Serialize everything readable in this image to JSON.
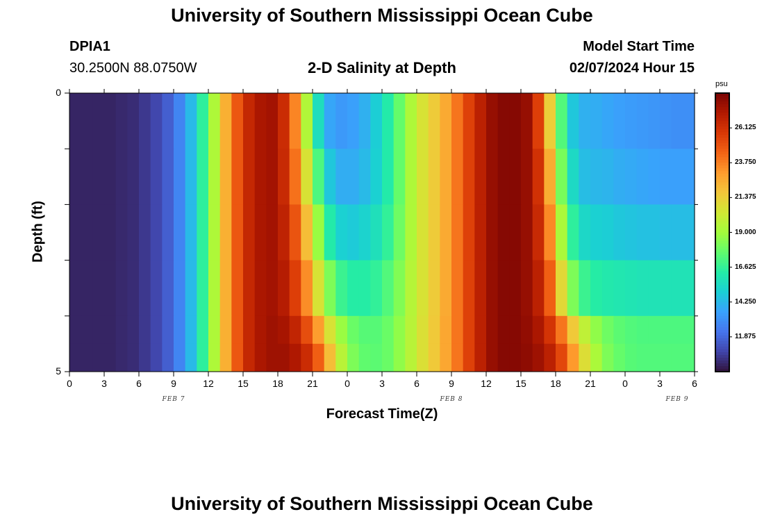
{
  "header": {
    "title": "University of Southern Mississippi Ocean Cube",
    "station_id": "DPIA1",
    "station_coords": "30.2500N  88.0750W",
    "subtitle": "2-D Salinity at Depth",
    "start_label": "Model Start Time",
    "start_value": "02/07/2024 Hour 15"
  },
  "footer": {
    "title": "University of Southern Mississippi Ocean Cube"
  },
  "axes": {
    "xlabel": "Forecast Time(Z)",
    "ylabel": "Depth (ft)",
    "x_tick_labels": [
      "0",
      "3",
      "6",
      "9",
      "12",
      "15",
      "18",
      "21",
      "0",
      "3",
      "6",
      "9",
      "12",
      "15",
      "18",
      "21",
      "0",
      "3",
      "6"
    ],
    "y_tick_labels": [
      "0",
      "5"
    ],
    "date_labels": [
      "FEB 7",
      "FEB 8",
      "FEB 9"
    ]
  },
  "colorbar": {
    "unit": "psu",
    "ticks": [
      "26.125",
      "23.750",
      "21.375",
      "19.000",
      "16.625",
      "14.250",
      "11.875"
    ],
    "min": 9.5,
    "max": 28.5,
    "colors": [
      "#30123b",
      "#4145ab",
      "#4675ed",
      "#39a2fc",
      "#1bcfd4",
      "#24eca6",
      "#61fc6c",
      "#a4fc3b",
      "#d1e834",
      "#f3c63a",
      "#fe9b2d",
      "#f36315",
      "#d93806",
      "#b11901",
      "#7a0403"
    ]
  },
  "chart_data": {
    "type": "heatmap",
    "title": "2-D Salinity at Depth",
    "xlabel": "Forecast Time(Z)",
    "ylabel": "Depth (ft)",
    "unit": "psu",
    "x_unit": "forecast hour from 02/07/2024 00Z",
    "x_range": [
      0,
      54
    ],
    "y_range": [
      0,
      5
    ],
    "depths": [
      0,
      1,
      2,
      3,
      4,
      5
    ],
    "depth_bands": [
      "0-1",
      "1-2",
      "2-3",
      "3-4",
      "4-4.5",
      "4.5-5"
    ],
    "hours": [
      0,
      1,
      2,
      3,
      4,
      5,
      6,
      7,
      8,
      9,
      10,
      11,
      12,
      13,
      14,
      15,
      16,
      17,
      18,
      19,
      20,
      21,
      22,
      23,
      24,
      25,
      26,
      27,
      28,
      29,
      30,
      31,
      32,
      33,
      34,
      35,
      36,
      37,
      38,
      39,
      40,
      41,
      42,
      43,
      44,
      45,
      46,
      47,
      48,
      49,
      50,
      51,
      52,
      53,
      54
    ],
    "salinity": [
      [
        10.0,
        10.0,
        10.0,
        10.0,
        10.1,
        10.2,
        10.5,
        10.9,
        11.6,
        12.7,
        14.3,
        16.5,
        19.3,
        22.4,
        24.8,
        26.5,
        27.3,
        27.5,
        26.3,
        23.6,
        19.4,
        15.6,
        13.7,
        13.3,
        13.5,
        14.0,
        14.9,
        16.2,
        17.7,
        19.3,
        20.6,
        21.5,
        22.6,
        24.0,
        25.5,
        26.8,
        27.8,
        28.2,
        28.2,
        27.8,
        25.6,
        21.4,
        17.3,
        14.7,
        14.0,
        13.9,
        13.7,
        13.5,
        13.4,
        13.3,
        13.2,
        13.1,
        13.0,
        13.0,
        13.0
      ],
      [
        10.0,
        10.0,
        10.0,
        10.0,
        10.1,
        10.2,
        10.5,
        10.9,
        11.6,
        12.7,
        14.3,
        16.5,
        19.3,
        22.4,
        24.8,
        26.5,
        27.3,
        27.5,
        26.4,
        24.1,
        20.6,
        17.2,
        14.7,
        13.9,
        13.9,
        14.3,
        15.0,
        16.2,
        17.7,
        19.3,
        20.6,
        21.5,
        22.6,
        24.0,
        25.5,
        26.8,
        27.8,
        28.2,
        28.2,
        27.8,
        26.1,
        22.5,
        18.1,
        15.4,
        14.4,
        14.2,
        14.1,
        13.9,
        13.8,
        13.7,
        13.6,
        13.5,
        13.5,
        13.5,
        13.5
      ],
      [
        10.0,
        10.0,
        10.0,
        10.0,
        10.1,
        10.2,
        10.5,
        10.9,
        11.6,
        12.7,
        14.3,
        16.5,
        19.3,
        22.4,
        24.8,
        26.5,
        27.3,
        27.5,
        26.7,
        24.9,
        22.0,
        18.8,
        16.2,
        15.0,
        14.8,
        15.1,
        15.7,
        16.6,
        17.9,
        19.3,
        20.6,
        21.5,
        22.6,
        24.0,
        25.5,
        26.8,
        27.8,
        28.2,
        28.2,
        27.8,
        26.4,
        23.5,
        19.2,
        16.5,
        15.3,
        15.0,
        14.9,
        14.7,
        14.6,
        14.5,
        14.5,
        14.4,
        14.4,
        14.4,
        14.4
      ],
      [
        10.0,
        10.0,
        10.0,
        10.0,
        10.1,
        10.2,
        10.5,
        10.9,
        11.6,
        12.7,
        14.3,
        16.5,
        19.3,
        22.4,
        24.8,
        26.5,
        27.3,
        27.5,
        27.0,
        25.6,
        23.4,
        20.6,
        18.2,
        16.8,
        16.3,
        16.3,
        16.6,
        17.3,
        18.3,
        19.5,
        20.6,
        21.5,
        22.6,
        24.0,
        25.5,
        26.8,
        27.8,
        28.2,
        28.2,
        27.8,
        26.8,
        24.6,
        21.0,
        18.2,
        16.8,
        16.3,
        16.1,
        16.0,
        15.9,
        15.8,
        15.8,
        15.8,
        15.8,
        15.8,
        15.8
      ],
      [
        10.0,
        10.0,
        10.0,
        10.0,
        10.1,
        10.2,
        10.5,
        10.9,
        11.6,
        12.7,
        14.3,
        16.5,
        19.3,
        22.4,
        24.8,
        26.5,
        27.3,
        27.6,
        27.4,
        26.6,
        25.1,
        23.0,
        20.6,
        18.8,
        17.8,
        17.4,
        17.4,
        17.8,
        18.6,
        19.6,
        20.7,
        21.6,
        22.7,
        24.0,
        25.5,
        26.8,
        27.8,
        28.2,
        28.2,
        27.9,
        27.3,
        26.0,
        24.0,
        21.6,
        19.8,
        18.6,
        17.9,
        17.5,
        17.3,
        17.2,
        17.2,
        17.2,
        17.2,
        17.2,
        17.2
      ],
      [
        10.0,
        10.0,
        10.0,
        10.0,
        10.1,
        10.2,
        10.5,
        10.9,
        11.6,
        12.7,
        14.3,
        16.5,
        19.3,
        22.4,
        24.8,
        26.5,
        27.3,
        27.6,
        27.6,
        27.2,
        26.3,
        24.6,
        22.0,
        19.6,
        18.2,
        17.6,
        17.5,
        17.8,
        18.6,
        19.6,
        20.7,
        21.6,
        22.7,
        24.0,
        25.5,
        26.8,
        27.8,
        28.2,
        28.2,
        28.0,
        27.6,
        26.8,
        25.3,
        23.1,
        20.8,
        19.2,
        18.2,
        17.7,
        17.4,
        17.3,
        17.3,
        17.3,
        17.3,
        17.3,
        17.3
      ]
    ]
  }
}
